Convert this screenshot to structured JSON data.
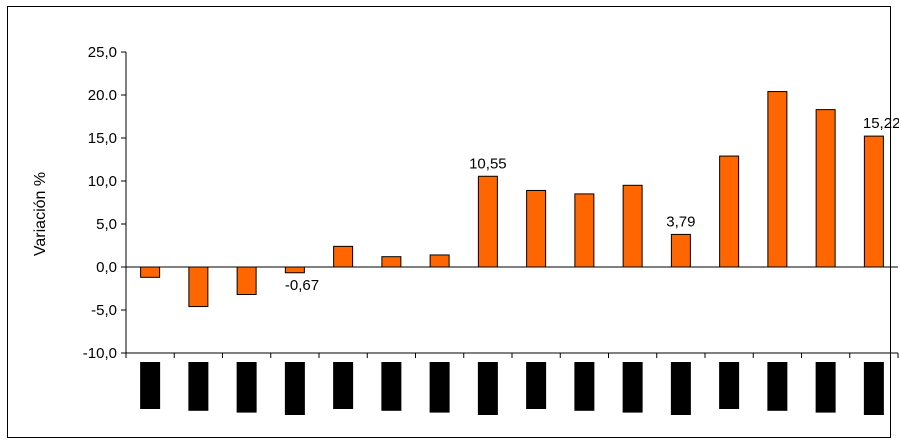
{
  "chart_data": {
    "type": "bar",
    "ylabel": "Variación  %",
    "ylim": [
      -10,
      25
    ],
    "ytick_step": 5,
    "ytick_labels": [
      "-10,0",
      "-5,0",
      "0,0",
      "5,0",
      "10,0",
      "15,0",
      "20.0",
      "25,0"
    ],
    "categories": [
      "",
      "",
      "",
      "",
      "",
      "",
      "",
      "",
      "",
      "",
      "",
      "",
      "",
      "",
      "",
      ""
    ],
    "category_labels_redacted": true,
    "values": [
      -1.2,
      -4.6,
      -3.2,
      -0.67,
      2.4,
      1.2,
      1.4,
      10.55,
      8.9,
      8.5,
      9.5,
      3.79,
      12.9,
      20.4,
      18.3,
      15.22
    ],
    "data_labels": [
      "",
      "",
      "",
      "-0,67",
      "",
      "",
      "",
      "10,55",
      "",
      "",
      "",
      "3,79",
      "",
      "",
      "",
      "15,22"
    ],
    "bar_color": "#ff6600",
    "bar_edge_color": "#000000",
    "grid": false,
    "legend": "none"
  }
}
